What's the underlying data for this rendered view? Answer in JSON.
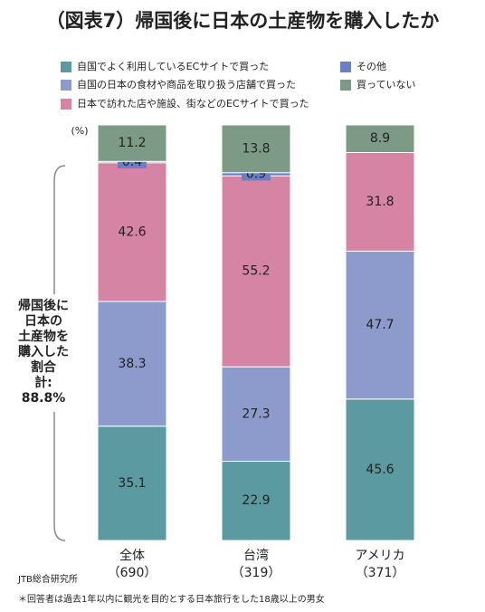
{
  "chart_data": {
    "type": "stacked_bar_percent",
    "title": "（図表7）帰国後に日本の土産物を購入したか",
    "unit_label": "(%)",
    "categories": [
      "全体",
      "台湾",
      "アメリカ"
    ],
    "sample_sizes": [
      "（690）",
      "（319）",
      "（371）"
    ],
    "series": [
      {
        "name": "自国でよく利用しているECサイトで買った",
        "color": "#5b9aa0",
        "values": [
          35.1,
          22.9,
          45.6
        ]
      },
      {
        "name": "自国の日本の食材や商品を取り扱う店舗で買った",
        "color": "#8c9bcc",
        "values": [
          38.3,
          27.3,
          47.7
        ]
      },
      {
        "name": "日本で訪れた店や施設、街などのECサイトで買った",
        "color": "#d585a3",
        "values": [
          42.6,
          55.2,
          31.8
        ]
      },
      {
        "name": "その他",
        "color": "#6a7fc4",
        "values": [
          0.4,
          0.9,
          null
        ]
      },
      {
        "name": "買っていない",
        "color": "#7d9a87",
        "values": [
          11.2,
          13.8,
          8.9
        ]
      }
    ],
    "bracket_note": [
      "帰国後に",
      "日本の",
      "土産物を",
      "購入した",
      "割合",
      "計:",
      "88.8%"
    ],
    "source": "JTB総合研究所",
    "footnote": "＊回答者は過去1年以内に観光を目的とする日本旅行をした18歳以上の男女"
  }
}
